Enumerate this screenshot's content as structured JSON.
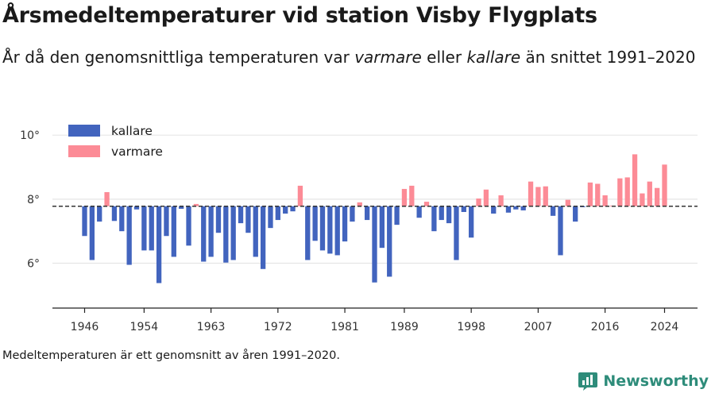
{
  "header": {
    "title": "Årsmedeltemperaturer vid station Visby Flygplats",
    "subtitle_parts": [
      "År då den genomsnittliga temperaturen var ",
      "varmare",
      " eller ",
      "kallare",
      " än snittet 1991–2020"
    ]
  },
  "footer": {
    "note": "Medeltemperaturen är ett genomsnitt av åren 1991–2020.",
    "brand": "Newsworthy",
    "brand_icon": "newsworthy-logo-icon"
  },
  "colors": {
    "colder": "#4264be",
    "warmer": "#fc8b96",
    "baseline": "#333333",
    "grid": "#e6e6e6",
    "brand": "#2e8c7a"
  },
  "chart_data": {
    "type": "bar",
    "title": "Årsmedeltemperaturer vid station Visby Flygplats",
    "xlabel": "",
    "ylabel": "",
    "baseline": 7.78,
    "ylim": [
      4.6,
      10.5
    ],
    "yticks": [
      6,
      8,
      10
    ],
    "ytick_labels": [
      "6°",
      "8°",
      "10°"
    ],
    "xticks": [
      1946,
      1954,
      1963,
      1972,
      1981,
      1989,
      1998,
      2007,
      2016,
      2024
    ],
    "grid": true,
    "legend_position": "top-left",
    "series": [
      {
        "name": "kallare",
        "color": "#4264be"
      },
      {
        "name": "varmare",
        "color": "#fc8b96"
      }
    ],
    "x": [
      1946,
      1947,
      1948,
      1949,
      1950,
      1951,
      1952,
      1953,
      1954,
      1955,
      1956,
      1957,
      1958,
      1959,
      1960,
      1961,
      1962,
      1963,
      1964,
      1965,
      1966,
      1967,
      1968,
      1969,
      1970,
      1971,
      1972,
      1973,
      1974,
      1975,
      1976,
      1977,
      1978,
      1979,
      1980,
      1981,
      1982,
      1983,
      1984,
      1985,
      1986,
      1987,
      1988,
      1989,
      1990,
      1991,
      1992,
      1993,
      1994,
      1995,
      1996,
      1997,
      1998,
      1999,
      2000,
      2001,
      2002,
      2003,
      2004,
      2005,
      2006,
      2007,
      2008,
      2009,
      2010,
      2011,
      2012,
      2013,
      2014,
      2015,
      2016,
      2017,
      2018,
      2019,
      2020,
      2021,
      2022,
      2023,
      2024
    ],
    "values": [
      6.85,
      6.1,
      7.3,
      8.22,
      7.32,
      7.0,
      5.95,
      7.68,
      6.4,
      6.4,
      5.38,
      6.85,
      6.2,
      7.7,
      6.55,
      7.85,
      6.05,
      6.2,
      6.95,
      6.02,
      6.1,
      7.25,
      6.95,
      6.2,
      5.82,
      7.1,
      7.35,
      7.55,
      7.62,
      8.42,
      6.1,
      6.7,
      6.4,
      6.3,
      6.25,
      6.68,
      7.3,
      7.9,
      7.35,
      5.4,
      6.48,
      5.58,
      7.2,
      8.32,
      8.42,
      7.42,
      7.92,
      7.0,
      7.35,
      7.25,
      6.1,
      7.6,
      6.8,
      8.02,
      8.3,
      7.55,
      8.12,
      7.58,
      7.68,
      7.65,
      8.55,
      8.38,
      8.4,
      7.48,
      6.25,
      7.98,
      7.3,
      7.75,
      8.52,
      8.48,
      8.12,
      7.8,
      8.65,
      8.68,
      9.4,
      8.18,
      8.55,
      8.35,
      9.08
    ]
  }
}
